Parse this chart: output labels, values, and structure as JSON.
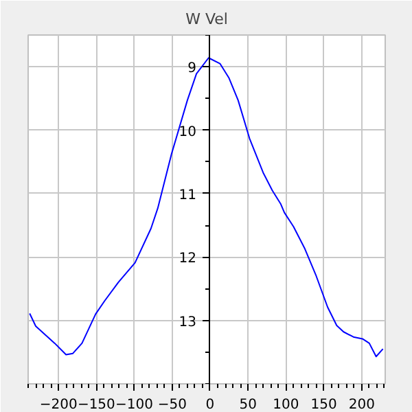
{
  "chart_data": {
    "type": "line",
    "title": "W Vel",
    "series": [
      {
        "color": "#0000ff",
        "x": [
          -238,
          -230,
          -205,
          -190,
          -181,
          -169,
          -151,
          -139,
          -121,
          -99,
          -78,
          -69,
          -51,
          -30,
          -18,
          -2,
          13,
          25,
          37,
          52,
          70,
          82,
          93,
          98,
          110,
          125,
          140,
          155,
          167,
          176,
          189,
          201,
          210,
          219,
          228
        ],
        "values": [
          12.89,
          13.09,
          13.36,
          13.54,
          13.52,
          13.36,
          12.9,
          12.69,
          12.4,
          12.09,
          11.55,
          11.23,
          10.38,
          9.53,
          9.11,
          8.86,
          8.95,
          9.18,
          9.53,
          10.13,
          10.67,
          10.95,
          11.16,
          11.3,
          11.52,
          11.87,
          12.3,
          12.79,
          13.08,
          13.18,
          13.26,
          13.29,
          13.36,
          13.57,
          13.45
        ]
      }
    ],
    "xlim": [
      -240,
      231
    ],
    "ylim": [
      14,
      8.5
    ],
    "xticks": [
      -200,
      -150,
      -100,
      -50,
      0,
      50,
      100,
      150,
      200
    ],
    "yticks": [
      9,
      10,
      11,
      12,
      13
    ],
    "grid": true,
    "marker": "none",
    "line_style": "solid"
  }
}
